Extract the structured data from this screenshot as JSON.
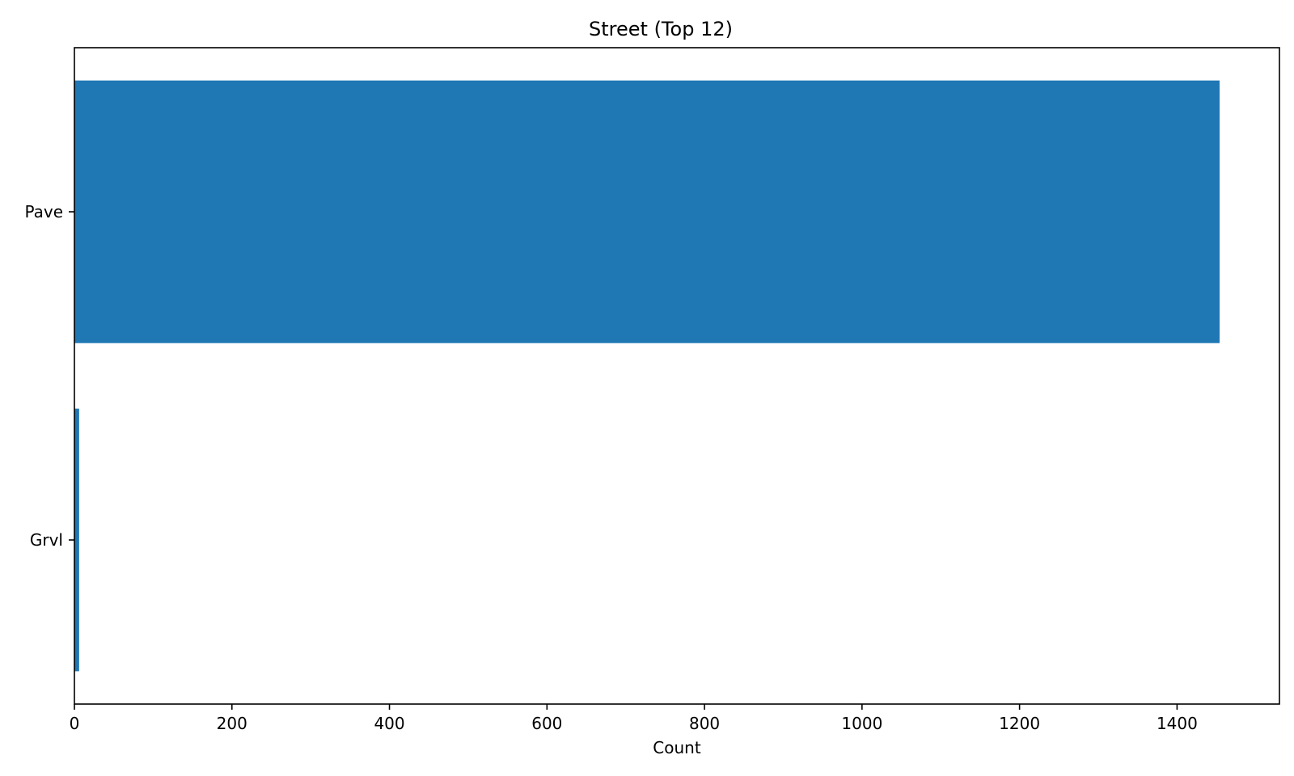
{
  "chart_data": {
    "type": "bar",
    "orientation": "horizontal",
    "title": "Street (Top 12)",
    "xlabel": "Count",
    "ylabel": "",
    "categories": [
      "Pave",
      "Grvl"
    ],
    "values": [
      1454,
      6
    ],
    "xlim": [
      0,
      1530
    ],
    "xticks": [
      0,
      200,
      400,
      600,
      800,
      1000,
      1200,
      1400
    ],
    "grid": false,
    "legend": "none",
    "bar_color": "#1f77b4"
  }
}
